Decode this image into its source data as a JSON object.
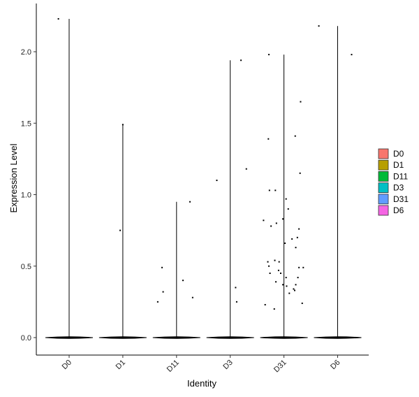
{
  "chart_data": {
    "type": "violin",
    "title": "",
    "xlabel": "Identity",
    "ylabel": "Expression Level",
    "ylim": [
      -0.12,
      2.3
    ],
    "yticks": [
      0.0,
      0.5,
      1.0,
      1.5,
      2.0
    ],
    "ytick_labels": [
      "0.0",
      "0.5",
      "1.0",
      "1.5",
      "2.0"
    ],
    "categories": [
      "D0",
      "D1",
      "D11",
      "D3",
      "D31",
      "D6"
    ],
    "grid": false,
    "legend_position": "right",
    "legend": [
      {
        "name": "D0",
        "color": "#F8766D"
      },
      {
        "name": "D1",
        "color": "#B79F00"
      },
      {
        "name": "D11",
        "color": "#00BA38"
      },
      {
        "name": "D3",
        "color": "#00BFC4"
      },
      {
        "name": "D31",
        "color": "#619CFF"
      },
      {
        "name": "D6",
        "color": "#F564E3"
      }
    ],
    "groups": [
      {
        "name": "D0",
        "max": 2.23,
        "points": [
          [
            -0.2,
            2.23
          ]
        ]
      },
      {
        "name": "D1",
        "max": 1.49,
        "points": [
          [
            0.0,
            1.49
          ],
          [
            -0.05,
            0.75
          ]
        ]
      },
      {
        "name": "D11",
        "max": 0.95,
        "points": [
          [
            0.25,
            0.95
          ],
          [
            -0.27,
            0.49
          ],
          [
            0.12,
            0.4
          ],
          [
            -0.25,
            0.32
          ],
          [
            0.3,
            0.28
          ],
          [
            -0.35,
            0.25
          ]
        ]
      },
      {
        "name": "D3",
        "max": 1.94,
        "points": [
          [
            0.2,
            1.94
          ],
          [
            0.3,
            1.18
          ],
          [
            -0.25,
            1.1
          ],
          [
            0.1,
            0.35
          ],
          [
            0.12,
            0.25
          ]
        ]
      },
      {
        "name": "D31",
        "max": 1.98,
        "points": [
          [
            -0.28,
            1.98
          ],
          [
            0.31,
            1.65
          ],
          [
            0.21,
            1.41
          ],
          [
            -0.29,
            1.39
          ],
          [
            0.3,
            1.15
          ],
          [
            -0.27,
            1.03
          ],
          [
            -0.16,
            1.03
          ],
          [
            0.04,
            0.97
          ],
          [
            0.08,
            0.9
          ],
          [
            -0.38,
            0.82
          ],
          [
            -0.02,
            0.83
          ],
          [
            -0.24,
            0.78
          ],
          [
            -0.14,
            0.8
          ],
          [
            0.28,
            0.76
          ],
          [
            0.25,
            0.7
          ],
          [
            0.15,
            0.69
          ],
          [
            0.02,
            0.66
          ],
          [
            0.22,
            0.63
          ],
          [
            -0.3,
            0.53
          ],
          [
            -0.28,
            0.5
          ],
          [
            -0.26,
            0.45
          ],
          [
            -0.17,
            0.54
          ],
          [
            -0.09,
            0.53
          ],
          [
            -0.1,
            0.47
          ],
          [
            -0.06,
            0.45
          ],
          [
            0.28,
            0.49
          ],
          [
            0.36,
            0.49
          ],
          [
            0.04,
            0.42
          ],
          [
            -0.15,
            0.39
          ],
          [
            -0.02,
            0.37
          ],
          [
            0.05,
            0.36
          ],
          [
            0.26,
            0.42
          ],
          [
            0.22,
            0.37
          ],
          [
            0.18,
            0.34
          ],
          [
            0.2,
            0.33
          ],
          [
            0.1,
            0.31
          ],
          [
            -0.35,
            0.23
          ],
          [
            -0.18,
            0.2
          ],
          [
            0.34,
            0.24
          ]
        ]
      },
      {
        "name": "D6",
        "max": 2.18,
        "points": [
          [
            -0.35,
            2.18
          ],
          [
            0.26,
            1.98
          ]
        ]
      }
    ]
  }
}
